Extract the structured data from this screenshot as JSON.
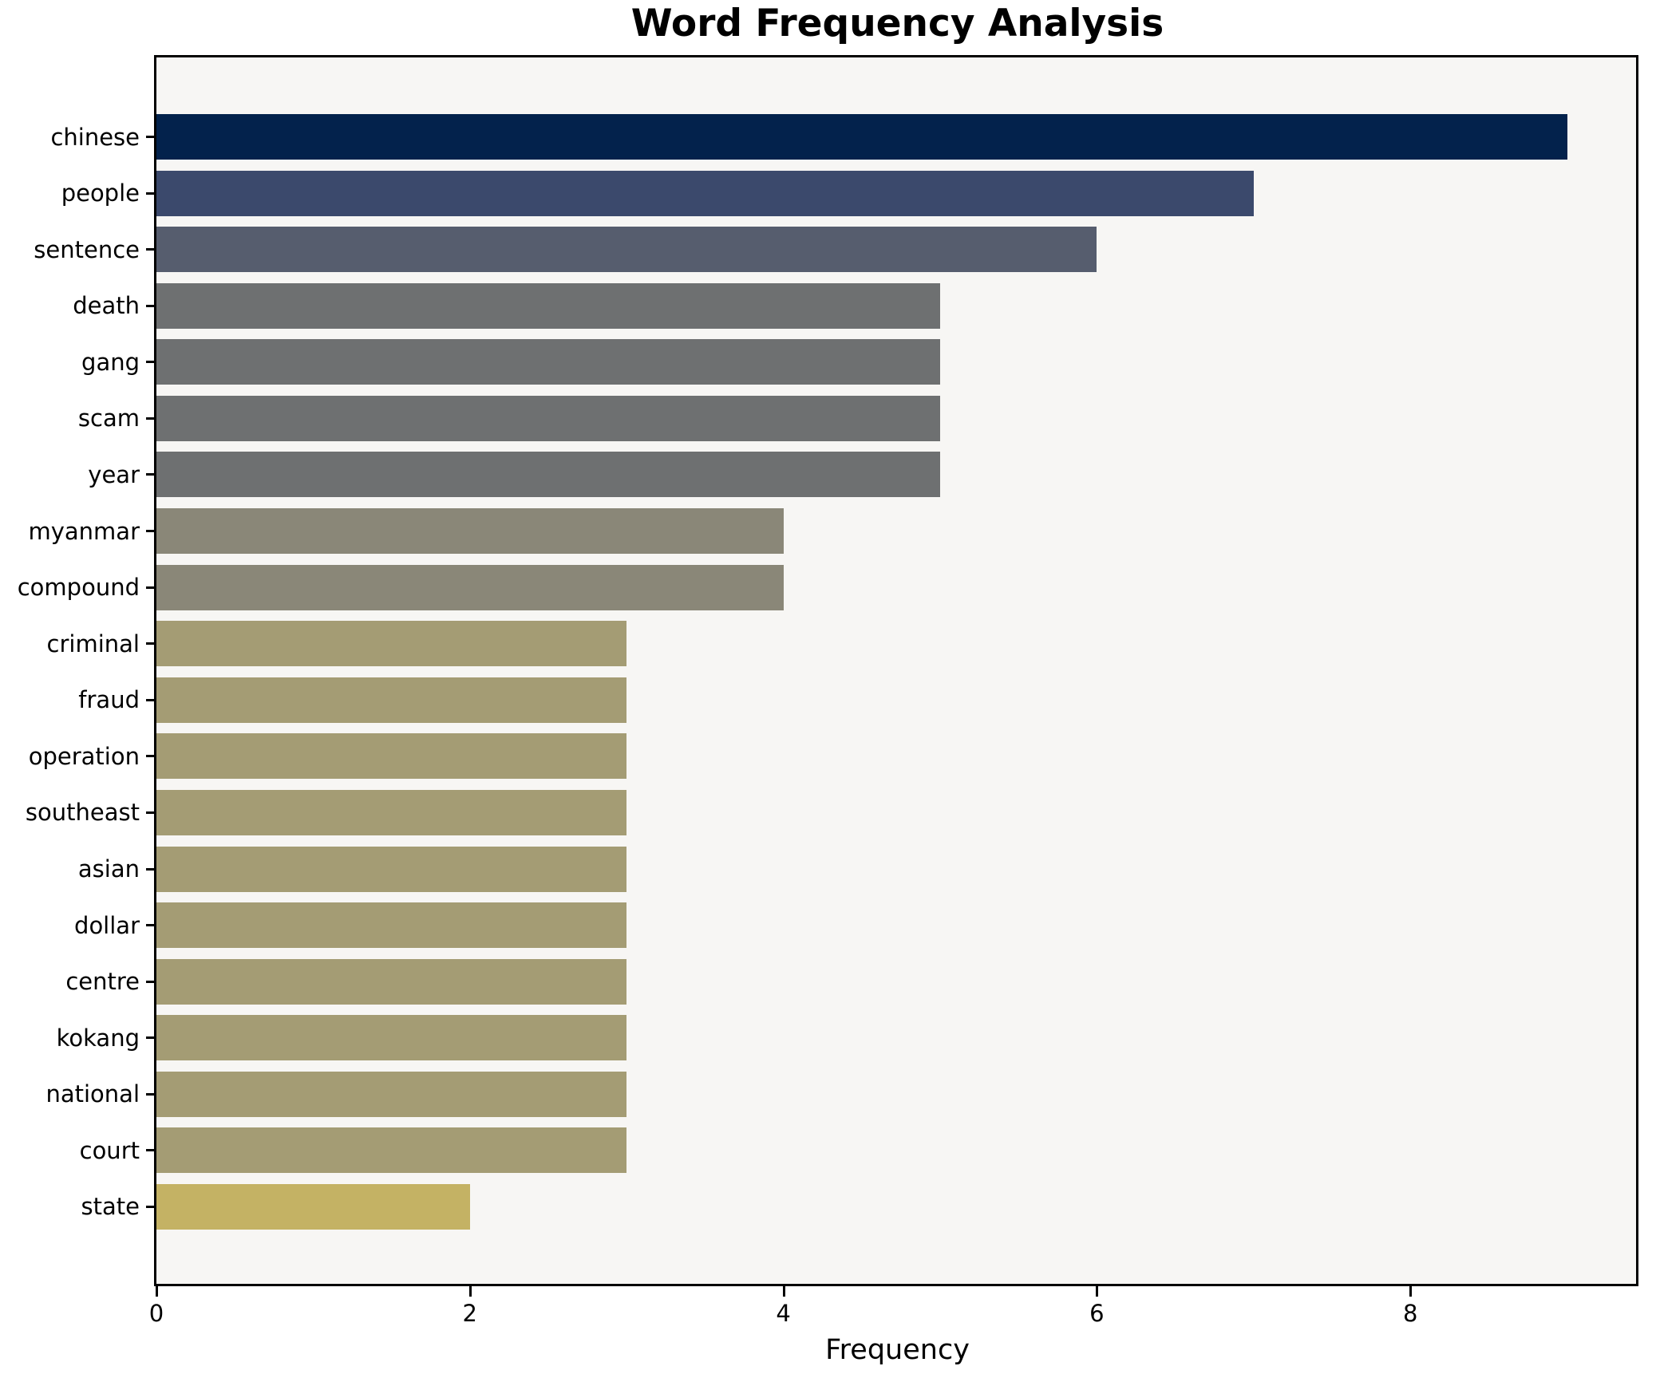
{
  "title": "Word Frequency Analysis",
  "xlabel": "Frequency",
  "chart_data": {
    "type": "bar",
    "orientation": "horizontal",
    "title": "Word Frequency Analysis",
    "xlabel": "Frequency",
    "ylabel": "",
    "categories": [
      "chinese",
      "people",
      "sentence",
      "death",
      "gang",
      "scam",
      "year",
      "myanmar",
      "compound",
      "criminal",
      "fraud",
      "operation",
      "southeast",
      "asian",
      "dollar",
      "centre",
      "kokang",
      "national",
      "court",
      "state"
    ],
    "values": [
      9,
      7,
      6,
      5,
      5,
      5,
      5,
      4,
      4,
      3,
      3,
      3,
      3,
      3,
      3,
      3,
      3,
      3,
      3,
      2
    ],
    "bar_colors": [
      "#03224c",
      "#3b496c",
      "#565d6e",
      "#6e7071",
      "#6e7071",
      "#6e7071",
      "#6e7071",
      "#8a8778",
      "#8a8778",
      "#a49c74",
      "#a49c74",
      "#a49c74",
      "#a49c74",
      "#a49c74",
      "#a49c74",
      "#a49c74",
      "#a49c74",
      "#a49c74",
      "#a49c74",
      "#c4b264"
    ],
    "xlim": [
      0,
      9.44
    ],
    "xticks": [
      0,
      2,
      4,
      6,
      8
    ],
    "grid": false,
    "legend": "none",
    "colormap": "cividis",
    "plot_bg": "#f7f6f4",
    "figure_bg": "#ffffff",
    "spine_color": "#000000"
  }
}
